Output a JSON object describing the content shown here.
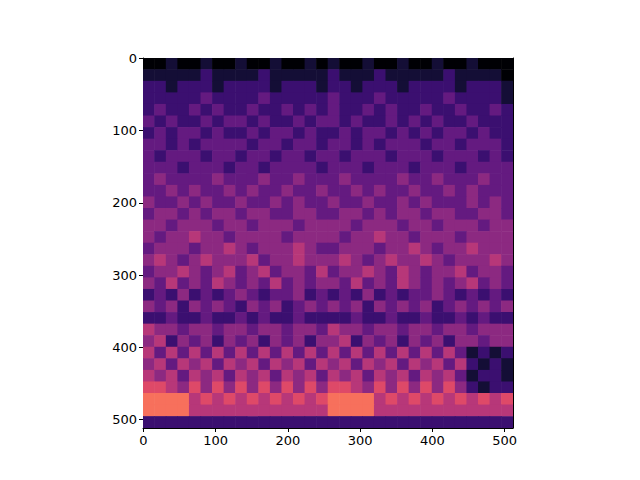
{
  "chart_data": {
    "type": "heatmap",
    "x": [
      7.5,
      23.5,
      39.5,
      55.5,
      71.5,
      87.5,
      103.5,
      119.5,
      135.5,
      151.5,
      167.5,
      183.5,
      199.5,
      215.5,
      231.5,
      247.5,
      263.5,
      279.5,
      295.5,
      311.5,
      327.5,
      343.5,
      359.5,
      375.5,
      391.5,
      407.5,
      423.5,
      439.5,
      455.5,
      471.5,
      487.5,
      503.5
    ],
    "y": [
      7.5,
      23.5,
      39.5,
      55.5,
      71.5,
      87.5,
      103.5,
      119.5,
      135.5,
      151.5,
      167.5,
      183.5,
      199.5,
      215.5,
      231.5,
      247.5,
      263.5,
      279.5,
      295.5,
      311.5,
      327.5,
      343.5,
      359.5,
      375.5,
      391.5,
      407.5,
      423.5,
      439.5,
      455.5,
      471.5,
      487.5,
      503.5
    ],
    "cells": [
      [
        0,
        0,
        1,
        0,
        0,
        1,
        0,
        0,
        1,
        0,
        0,
        1,
        0,
        0,
        1,
        0,
        1,
        0,
        0,
        1,
        0,
        0,
        1,
        0,
        0,
        1,
        0,
        0,
        1,
        0,
        0,
        0
      ],
      [
        1,
        1,
        1,
        1,
        1,
        2,
        1,
        1,
        1,
        1,
        2,
        1,
        1,
        1,
        1,
        1,
        2,
        1,
        1,
        1,
        2,
        1,
        1,
        1,
        1,
        1,
        2,
        1,
        1,
        1,
        1,
        0
      ],
      [
        2,
        2,
        1,
        2,
        2,
        2,
        1,
        2,
        2,
        2,
        2,
        1,
        2,
        2,
        2,
        1,
        2,
        2,
        1,
        2,
        2,
        2,
        1,
        2,
        2,
        2,
        2,
        1,
        2,
        2,
        2,
        1
      ],
      [
        2,
        2,
        2,
        2,
        2,
        3,
        2,
        2,
        2,
        2,
        3,
        2,
        2,
        2,
        2,
        2,
        3,
        2,
        2,
        2,
        3,
        2,
        2,
        2,
        2,
        2,
        3,
        2,
        2,
        2,
        2,
        1
      ],
      [
        2,
        3,
        2,
        2,
        3,
        2,
        3,
        2,
        2,
        3,
        2,
        2,
        3,
        2,
        3,
        2,
        3,
        2,
        2,
        3,
        2,
        3,
        2,
        2,
        3,
        2,
        2,
        3,
        2,
        2,
        3,
        2
      ],
      [
        3,
        2,
        3,
        2,
        2,
        3,
        2,
        3,
        3,
        2,
        3,
        2,
        2,
        3,
        2,
        3,
        3,
        2,
        3,
        2,
        2,
        3,
        2,
        3,
        2,
        3,
        2,
        2,
        3,
        2,
        2,
        2
      ],
      [
        2,
        3,
        2,
        3,
        3,
        2,
        3,
        2,
        2,
        3,
        2,
        3,
        3,
        2,
        3,
        2,
        2,
        3,
        2,
        3,
        3,
        2,
        3,
        2,
        3,
        2,
        3,
        3,
        2,
        3,
        2,
        2
      ],
      [
        3,
        3,
        2,
        3,
        2,
        3,
        3,
        3,
        3,
        2,
        3,
        3,
        2,
        3,
        3,
        2,
        3,
        3,
        2,
        3,
        2,
        3,
        3,
        3,
        2,
        3,
        3,
        2,
        3,
        3,
        3,
        2
      ],
      [
        3,
        2,
        3,
        3,
        3,
        2,
        3,
        3,
        2,
        3,
        3,
        2,
        3,
        3,
        2,
        3,
        3,
        2,
        3,
        3,
        3,
        2,
        3,
        3,
        3,
        2,
        3,
        3,
        3,
        2,
        3,
        2
      ],
      [
        3,
        3,
        3,
        2,
        3,
        3,
        3,
        2,
        3,
        3,
        2,
        3,
        3,
        3,
        3,
        2,
        3,
        3,
        3,
        2,
        3,
        3,
        3,
        2,
        3,
        3,
        3,
        2,
        3,
        3,
        3,
        3
      ],
      [
        3,
        4,
        3,
        3,
        3,
        3,
        4,
        3,
        3,
        3,
        4,
        3,
        3,
        4,
        3,
        3,
        3,
        4,
        3,
        3,
        3,
        3,
        4,
        3,
        3,
        4,
        3,
        3,
        3,
        4,
        3,
        3
      ],
      [
        3,
        3,
        4,
        3,
        4,
        3,
        3,
        4,
        3,
        4,
        3,
        3,
        4,
        3,
        3,
        4,
        3,
        3,
        4,
        3,
        4,
        3,
        3,
        4,
        3,
        3,
        4,
        3,
        4,
        3,
        3,
        3
      ],
      [
        4,
        3,
        3,
        4,
        3,
        4,
        3,
        3,
        4,
        3,
        3,
        4,
        3,
        4,
        3,
        3,
        4,
        3,
        3,
        4,
        3,
        3,
        4,
        3,
        4,
        3,
        3,
        3,
        4,
        3,
        4,
        3
      ],
      [
        3,
        4,
        4,
        3,
        4,
        3,
        4,
        4,
        3,
        4,
        4,
        3,
        3,
        4,
        4,
        3,
        3,
        4,
        4,
        3,
        4,
        3,
        4,
        4,
        3,
        4,
        4,
        3,
        3,
        4,
        4,
        3
      ],
      [
        4,
        4,
        3,
        4,
        4,
        4,
        3,
        4,
        4,
        3,
        4,
        4,
        4,
        3,
        4,
        4,
        4,
        4,
        3,
        4,
        4,
        4,
        3,
        4,
        4,
        3,
        4,
        4,
        4,
        3,
        4,
        4
      ],
      [
        4,
        3,
        4,
        4,
        5,
        4,
        4,
        3,
        4,
        4,
        4,
        4,
        3,
        4,
        4,
        4,
        4,
        3,
        4,
        4,
        5,
        4,
        4,
        3,
        4,
        4,
        4,
        3,
        4,
        4,
        4,
        4
      ],
      [
        3,
        4,
        4,
        4,
        3,
        4,
        4,
        5,
        4,
        3,
        4,
        4,
        4,
        5,
        4,
        3,
        3,
        4,
        4,
        4,
        3,
        4,
        4,
        5,
        4,
        3,
        4,
        4,
        5,
        4,
        4,
        4
      ],
      [
        4,
        5,
        4,
        3,
        4,
        5,
        4,
        4,
        4,
        5,
        3,
        4,
        4,
        5,
        4,
        4,
        4,
        5,
        4,
        3,
        4,
        5,
        4,
        4,
        5,
        4,
        3,
        4,
        4,
        4,
        5,
        4
      ],
      [
        3,
        4,
        4,
        5,
        4,
        3,
        4,
        5,
        3,
        4,
        5,
        3,
        4,
        4,
        3,
        5,
        3,
        4,
        4,
        5,
        4,
        3,
        5,
        4,
        3,
        4,
        4,
        5,
        3,
        4,
        4,
        3
      ],
      [
        4,
        3,
        5,
        3,
        4,
        3,
        5,
        4,
        3,
        4,
        3,
        5,
        3,
        4,
        3,
        4,
        4,
        3,
        5,
        3,
        4,
        3,
        5,
        4,
        3,
        4,
        3,
        4,
        5,
        3,
        4,
        3
      ],
      [
        2,
        3,
        2,
        4,
        2,
        3,
        2,
        3,
        4,
        3,
        2,
        3,
        3,
        4,
        2,
        3,
        2,
        3,
        2,
        4,
        2,
        3,
        2,
        3,
        3,
        4,
        3,
        2,
        3,
        2,
        3,
        2
      ],
      [
        4,
        3,
        4,
        2,
        4,
        3,
        4,
        3,
        2,
        4,
        3,
        4,
        2,
        3,
        4,
        3,
        4,
        3,
        4,
        2,
        4,
        3,
        4,
        3,
        4,
        2,
        3,
        4,
        3,
        4,
        3,
        4
      ],
      [
        2,
        2,
        3,
        2,
        2,
        3,
        2,
        2,
        3,
        2,
        3,
        2,
        2,
        3,
        2,
        2,
        2,
        2,
        3,
        2,
        2,
        3,
        2,
        2,
        3,
        2,
        2,
        3,
        2,
        3,
        2,
        2
      ],
      [
        5,
        4,
        4,
        3,
        4,
        4,
        3,
        4,
        4,
        3,
        4,
        4,
        3,
        4,
        4,
        3,
        5,
        4,
        4,
        3,
        4,
        4,
        3,
        4,
        4,
        3,
        4,
        4,
        3,
        4,
        4,
        4
      ],
      [
        4,
        5,
        2,
        4,
        3,
        4,
        2,
        4,
        3,
        4,
        2,
        4,
        3,
        4,
        2,
        4,
        4,
        5,
        2,
        4,
        3,
        4,
        2,
        4,
        3,
        4,
        2,
        4,
        4,
        3,
        4,
        4
      ],
      [
        5,
        3,
        5,
        3,
        5,
        3,
        5,
        3,
        5,
        3,
        5,
        3,
        5,
        3,
        5,
        3,
        5,
        3,
        5,
        3,
        5,
        3,
        5,
        3,
        5,
        3,
        5,
        3,
        1,
        2,
        1,
        2
      ],
      [
        4,
        5,
        3,
        5,
        4,
        5,
        3,
        5,
        4,
        5,
        3,
        5,
        4,
        5,
        3,
        5,
        4,
        5,
        3,
        5,
        4,
        5,
        3,
        5,
        4,
        5,
        3,
        5,
        2,
        1,
        2,
        1
      ],
      [
        5,
        4,
        5,
        3,
        5,
        4,
        5,
        3,
        5,
        4,
        5,
        3,
        5,
        4,
        5,
        3,
        5,
        4,
        5,
        3,
        5,
        4,
        5,
        3,
        5,
        4,
        5,
        3,
        1,
        2,
        2,
        1
      ],
      [
        6,
        6,
        5,
        4,
        6,
        4,
        6,
        4,
        6,
        4,
        6,
        4,
        6,
        4,
        6,
        4,
        6,
        6,
        5,
        4,
        6,
        4,
        6,
        4,
        6,
        4,
        6,
        4,
        2,
        1,
        2,
        2
      ],
      [
        7,
        7,
        7,
        7,
        5,
        6,
        5,
        6,
        5,
        6,
        5,
        6,
        5,
        6,
        5,
        6,
        7,
        7,
        7,
        7,
        5,
        6,
        5,
        6,
        5,
        6,
        5,
        6,
        5,
        6,
        5,
        6
      ],
      [
        7,
        7,
        7,
        7,
        5,
        5,
        5,
        5,
        5,
        5,
        5,
        5,
        5,
        5,
        5,
        5,
        7,
        7,
        7,
        7,
        5,
        5,
        5,
        5,
        5,
        5,
        5,
        5,
        5,
        5,
        5,
        5
      ],
      [
        2,
        2,
        2,
        2,
        2,
        2,
        2,
        2,
        2,
        2,
        2,
        2,
        2,
        2,
        2,
        2,
        2,
        2,
        2,
        2,
        2,
        2,
        2,
        2,
        2,
        2,
        2,
        2,
        2,
        2,
        2,
        2
      ]
    ],
    "color_range": [
      0,
      9
    ],
    "xlim": [
      -0.5,
      511.5
    ],
    "ylim": [
      511.5,
      -0.5
    ],
    "xticks": [
      0,
      100,
      200,
      300,
      400,
      500
    ],
    "yticks": [
      0,
      100,
      200,
      300,
      400,
      500
    ]
  }
}
